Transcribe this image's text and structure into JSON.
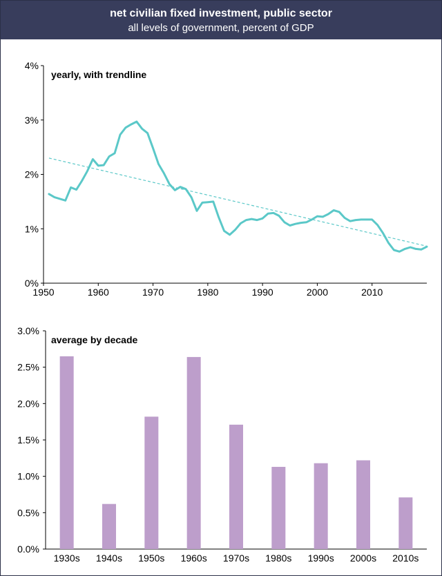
{
  "header": {
    "title": "net civilian fixed investment, public sector",
    "subtitle": "all levels of government, percent of GDP"
  },
  "chart_data": [
    {
      "type": "line",
      "title": "yearly, with trendline",
      "color": "#5bc8c8",
      "trend_color": "#5bc8c8",
      "xlim": [
        1950,
        2020
      ],
      "ylim": [
        0,
        4
      ],
      "x_ticks": [
        1950,
        1960,
        1970,
        1980,
        1990,
        2000,
        2010
      ],
      "y_ticks": [
        0,
        1,
        2,
        3,
        4
      ],
      "y_tick_labels": [
        "0%",
        "1%",
        "2%",
        "3%",
        "4%"
      ],
      "x": [
        1951,
        1952,
        1953,
        1954,
        1955,
        1956,
        1957,
        1958,
        1959,
        1960,
        1961,
        1962,
        1963,
        1964,
        1965,
        1966,
        1967,
        1968,
        1969,
        1970,
        1971,
        1972,
        1973,
        1974,
        1975,
        1976,
        1977,
        1978,
        1979,
        1980,
        1981,
        1982,
        1983,
        1984,
        1985,
        1986,
        1987,
        1988,
        1989,
        1990,
        1991,
        1992,
        1993,
        1994,
        1995,
        1996,
        1997,
        1998,
        1999,
        2000,
        2001,
        2002,
        2003,
        2004,
        2005,
        2006,
        2007,
        2008,
        2009,
        2010,
        2011,
        2012,
        2013,
        2014,
        2015,
        2016,
        2017,
        2018,
        2019,
        2020
      ],
      "values": [
        1.64,
        1.58,
        1.55,
        1.52,
        1.76,
        1.72,
        1.88,
        2.06,
        2.28,
        2.16,
        2.17,
        2.33,
        2.39,
        2.73,
        2.86,
        2.92,
        2.97,
        2.84,
        2.76,
        2.48,
        2.19,
        2.02,
        1.82,
        1.71,
        1.77,
        1.73,
        1.58,
        1.33,
        1.48,
        1.49,
        1.5,
        1.21,
        0.96,
        0.89,
        0.98,
        1.1,
        1.16,
        1.18,
        1.16,
        1.19,
        1.28,
        1.29,
        1.24,
        1.12,
        1.06,
        1.09,
        1.11,
        1.12,
        1.17,
        1.23,
        1.22,
        1.27,
        1.34,
        1.31,
        1.2,
        1.14,
        1.16,
        1.17,
        1.17,
        1.17,
        1.07,
        0.92,
        0.74,
        0.61,
        0.58,
        0.63,
        0.66,
        0.63,
        0.62,
        0.67
      ],
      "trend": {
        "x": [
          1951,
          2020
        ],
        "y": [
          2.3,
          0.68
        ]
      }
    },
    {
      "type": "bar",
      "title": "average by decade",
      "color": "#bd9ecb",
      "categories": [
        "1930s",
        "1940s",
        "1950s",
        "1960s",
        "1970s",
        "1980s",
        "1990s",
        "2000s",
        "2010s"
      ],
      "values": [
        2.65,
        0.62,
        1.82,
        2.64,
        1.71,
        1.13,
        1.18,
        1.22,
        0.71
      ],
      "ylim": [
        0,
        3
      ],
      "y_ticks": [
        0,
        0.5,
        1,
        1.5,
        2,
        2.5,
        3
      ],
      "y_tick_labels": [
        "0.0%",
        "0.5%",
        "1.0%",
        "1.5%",
        "2.0%",
        "2.5%",
        "3.0%"
      ]
    }
  ]
}
